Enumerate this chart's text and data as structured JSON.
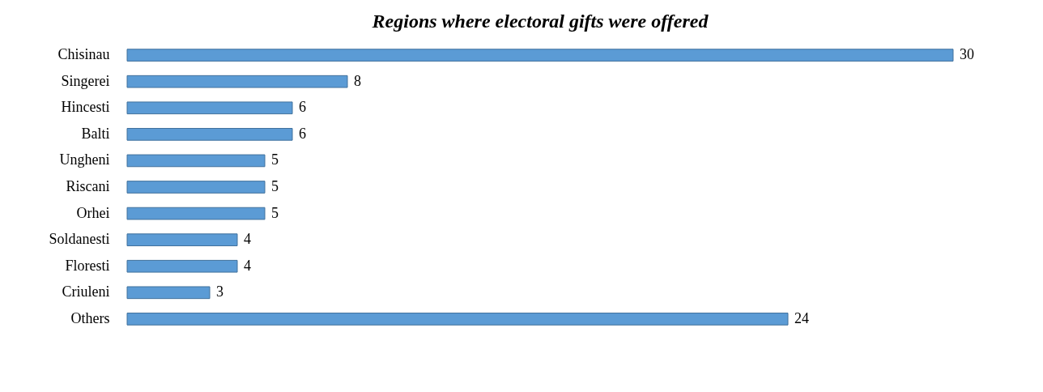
{
  "chart_data": {
    "type": "bar",
    "orientation": "horizontal",
    "title": "Regions where electoral gifts were offered",
    "categories": [
      "Chisinau",
      "Singerei",
      "Hincesti",
      "Balti",
      "Ungheni",
      "Riscani",
      "Orhei",
      "Soldanesti",
      "Floresti",
      "Criuleni",
      "Others"
    ],
    "values": [
      30,
      8,
      6,
      6,
      5,
      5,
      5,
      4,
      4,
      3,
      24
    ],
    "color": "#5b9bd5",
    "data_labels": true
  }
}
